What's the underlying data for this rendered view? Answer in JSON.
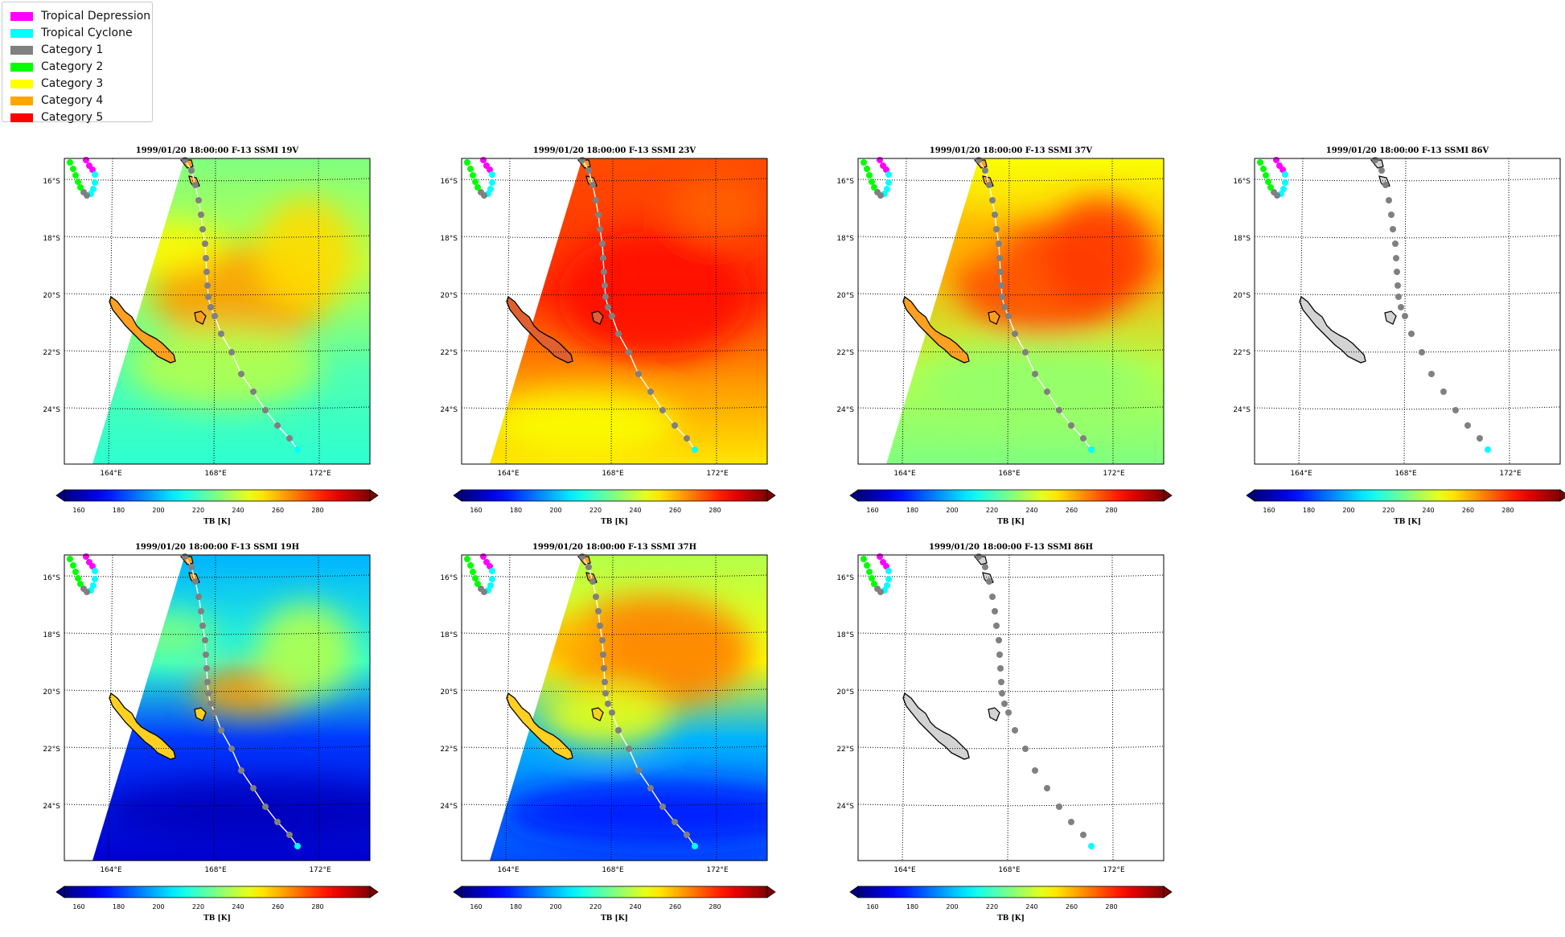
{
  "legend": {
    "items": [
      {
        "label": "Tropical Depression",
        "color": "#ff00ff"
      },
      {
        "label": "Tropical Cyclone",
        "color": "#00ffff"
      },
      {
        "label": "Category 1",
        "color": "#808080"
      },
      {
        "label": "Category 2",
        "color": "#00ff00"
      },
      {
        "label": "Category 3",
        "color": "#ffff00"
      },
      {
        "label": "Category 4",
        "color": "#ffa500"
      },
      {
        "label": "Category 5",
        "color": "#ff0000"
      }
    ]
  },
  "axes": {
    "lat_labels": [
      "16°S",
      "18°S",
      "20°S",
      "22°S",
      "24°S"
    ],
    "lon_labels": [
      "164°E",
      "168°E",
      "172°E"
    ]
  },
  "colorbar": {
    "ticks": [
      "160",
      "180",
      "200",
      "220",
      "240",
      "260",
      "280"
    ],
    "label": "TB [K]",
    "colormap": "jet"
  },
  "panels": [
    {
      "title": "1999/01/20 18:00:00  F-13 SSMI 19V",
      "field": "field_19v",
      "has_data": true
    },
    {
      "title": "1999/01/20 18:00:00  F-13 SSMI 23V",
      "field": "field_23v",
      "has_data": true
    },
    {
      "title": "1999/01/20 18:00:00  F-13 SSMI 37V",
      "field": "field_37v",
      "has_data": true
    },
    {
      "title": "1999/01/20 18:00:00  F-13 SSMI 86V",
      "field": "none",
      "has_data": false
    },
    {
      "title": "1999/01/20 18:00:00  F-13 SSMI 19H",
      "field": "field_19h",
      "has_data": true
    },
    {
      "title": "1999/01/20 18:00:00  F-13 SSMI 37H",
      "field": "field_37h",
      "has_data": true
    },
    {
      "title": "1999/01/20 18:00:00  F-13 SSMI 86H",
      "field": "none",
      "has_data": false
    }
  ]
}
